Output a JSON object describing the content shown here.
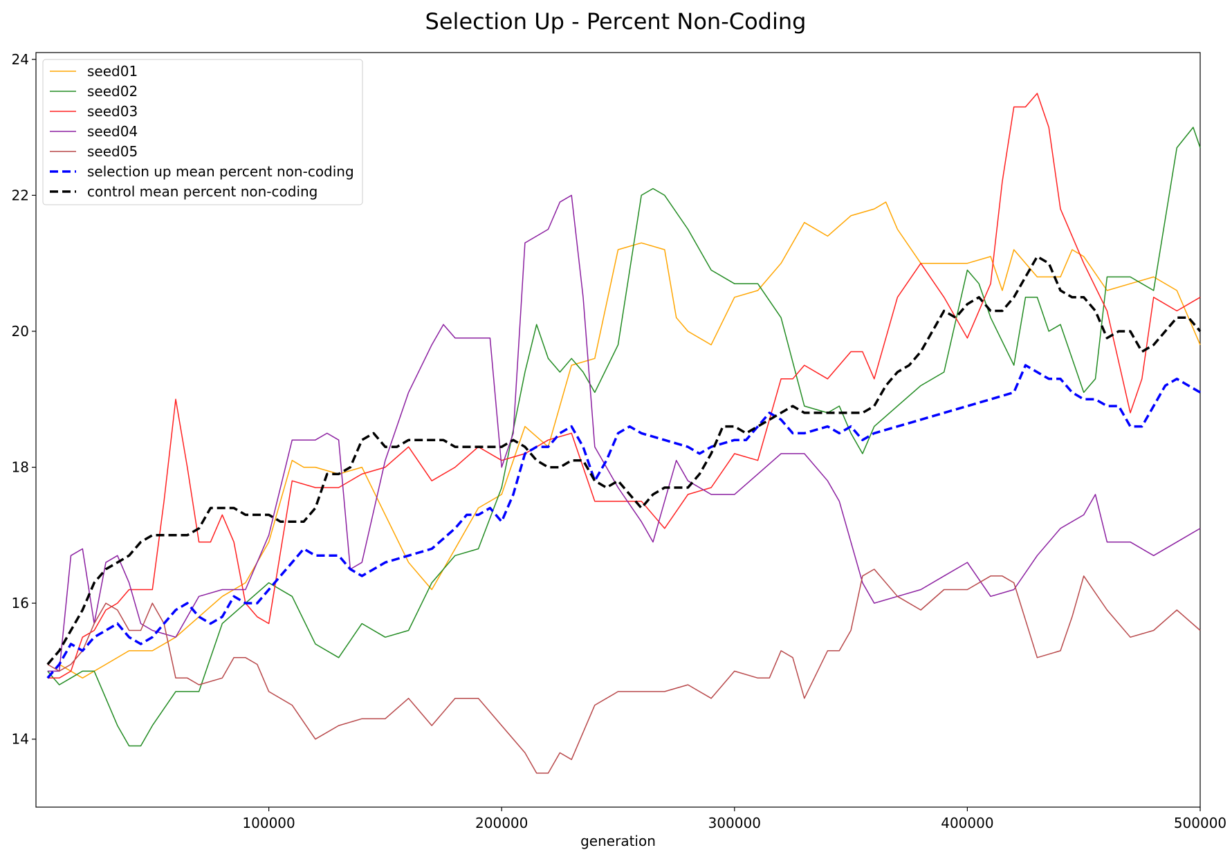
{
  "chart_data": {
    "type": "line",
    "title": "Selection Up - Percent Non-Coding",
    "xlabel": "generation",
    "ylabel": "",
    "xlim": [
      0,
      500000
    ],
    "ylim": [
      13,
      24.1
    ],
    "xticks": [
      100000,
      200000,
      300000,
      400000,
      500000
    ],
    "xtick_labels": [
      "100000",
      "200000",
      "300000",
      "400000",
      "500000"
    ],
    "yticks": [
      14,
      16,
      18,
      20,
      22,
      24
    ],
    "ytick_labels": [
      "14",
      "16",
      "18",
      "20",
      "22",
      "24"
    ],
    "grid": false,
    "legend_position": "top-left",
    "series": [
      {
        "name": "seed01",
        "color": "#FFA500",
        "style": "solid",
        "x": [
          10000,
          20000,
          30000,
          40000,
          50000,
          60000,
          70000,
          80000,
          90000,
          100000,
          110000,
          115000,
          120000,
          130000,
          140000,
          150000,
          160000,
          170000,
          180000,
          190000,
          200000,
          210000,
          220000,
          230000,
          240000,
          250000,
          260000,
          270000,
          275000,
          280000,
          290000,
          300000,
          310000,
          320000,
          330000,
          340000,
          350000,
          360000,
          365000,
          370000,
          380000,
          390000,
          400000,
          410000,
          415000,
          420000,
          430000,
          440000,
          445000,
          450000,
          460000,
          470000,
          480000,
          490000,
          500000
        ],
        "y": [
          15.1,
          14.9,
          15.1,
          15.3,
          15.3,
          15.5,
          15.8,
          16.1,
          16.3,
          16.9,
          18.1,
          18.0,
          18.0,
          17.9,
          18.0,
          17.3,
          16.6,
          16.2,
          16.8,
          17.4,
          17.6,
          18.6,
          18.3,
          19.5,
          19.6,
          21.2,
          21.3,
          21.2,
          20.2,
          20.0,
          19.8,
          20.5,
          20.6,
          21.0,
          21.6,
          21.4,
          21.7,
          21.8,
          21.9,
          21.5,
          21.0,
          21.0,
          21.0,
          21.1,
          20.6,
          21.2,
          20.8,
          20.8,
          21.2,
          21.1,
          20.6,
          20.7,
          20.8,
          20.6,
          19.8
        ]
      },
      {
        "name": "seed02",
        "color": "#228B22",
        "style": "solid",
        "x": [
          5000,
          10000,
          15000,
          20000,
          25000,
          30000,
          35000,
          40000,
          45000,
          50000,
          60000,
          70000,
          80000,
          90000,
          100000,
          110000,
          120000,
          130000,
          140000,
          150000,
          160000,
          170000,
          180000,
          190000,
          200000,
          210000,
          215000,
          220000,
          225000,
          230000,
          235000,
          240000,
          250000,
          260000,
          265000,
          270000,
          280000,
          290000,
          300000,
          310000,
          320000,
          330000,
          340000,
          345000,
          350000,
          355000,
          360000,
          370000,
          380000,
          390000,
          400000,
          405000,
          410000,
          420000,
          425000,
          430000,
          435000,
          440000,
          450000,
          455000,
          460000,
          470000,
          480000,
          490000,
          497000,
          500000
        ],
        "y": [
          15.0,
          14.8,
          14.9,
          15.0,
          15.0,
          14.6,
          14.2,
          13.9,
          13.9,
          14.2,
          14.7,
          14.7,
          15.7,
          16.0,
          16.3,
          16.1,
          15.4,
          15.2,
          15.7,
          15.5,
          15.6,
          16.3,
          16.7,
          16.8,
          17.7,
          19.4,
          20.1,
          19.6,
          19.4,
          19.6,
          19.4,
          19.1,
          19.8,
          22.0,
          22.1,
          22.0,
          21.5,
          20.9,
          20.7,
          20.7,
          20.2,
          18.9,
          18.8,
          18.9,
          18.5,
          18.2,
          18.6,
          18.9,
          19.2,
          19.4,
          20.9,
          20.7,
          20.2,
          19.5,
          20.5,
          20.5,
          20.0,
          20.1,
          19.1,
          19.3,
          20.8,
          20.8,
          20.6,
          22.7,
          23.0,
          22.7
        ]
      },
      {
        "name": "seed03",
        "color": "#FF2020",
        "style": "solid",
        "x": [
          5000,
          10000,
          15000,
          20000,
          25000,
          30000,
          35000,
          40000,
          50000,
          55000,
          60000,
          65000,
          70000,
          75000,
          80000,
          85000,
          90000,
          95000,
          100000,
          110000,
          120000,
          130000,
          140000,
          150000,
          160000,
          170000,
          180000,
          190000,
          200000,
          210000,
          220000,
          230000,
          240000,
          250000,
          260000,
          270000,
          280000,
          290000,
          300000,
          310000,
          320000,
          325000,
          330000,
          340000,
          350000,
          355000,
          360000,
          370000,
          380000,
          390000,
          400000,
          410000,
          415000,
          420000,
          425000,
          430000,
          435000,
          440000,
          450000,
          460000,
          470000,
          475000,
          480000,
          490000,
          500000
        ],
        "y": [
          14.9,
          14.9,
          15.0,
          15.5,
          15.6,
          15.9,
          16.0,
          16.2,
          16.2,
          17.5,
          19.0,
          18.0,
          16.9,
          16.9,
          17.3,
          16.9,
          16.0,
          15.8,
          15.7,
          17.8,
          17.7,
          17.7,
          17.9,
          18.0,
          18.3,
          17.8,
          18.0,
          18.3,
          18.1,
          18.2,
          18.4,
          18.5,
          17.5,
          17.5,
          17.5,
          17.1,
          17.6,
          17.7,
          18.2,
          18.1,
          19.3,
          19.3,
          19.5,
          19.3,
          19.7,
          19.7,
          19.3,
          20.5,
          21.0,
          20.5,
          19.9,
          20.7,
          22.2,
          23.3,
          23.3,
          23.5,
          23.0,
          21.8,
          21.0,
          20.3,
          18.8,
          19.3,
          20.5,
          20.3,
          20.5
        ]
      },
      {
        "name": "seed04",
        "color": "#8B1FA0",
        "style": "solid",
        "x": [
          5000,
          10000,
          15000,
          20000,
          25000,
          30000,
          35000,
          40000,
          45000,
          50000,
          60000,
          70000,
          80000,
          90000,
          100000,
          110000,
          120000,
          125000,
          130000,
          135000,
          140000,
          150000,
          160000,
          170000,
          175000,
          180000,
          185000,
          190000,
          195000,
          200000,
          205000,
          210000,
          215000,
          220000,
          225000,
          230000,
          235000,
          240000,
          250000,
          260000,
          265000,
          270000,
          275000,
          280000,
          290000,
          300000,
          310000,
          320000,
          330000,
          340000,
          345000,
          350000,
          355000,
          360000,
          370000,
          380000,
          390000,
          400000,
          410000,
          420000,
          430000,
          440000,
          450000,
          455000,
          460000,
          470000,
          480000,
          490000,
          500000
        ],
        "y": [
          15.0,
          15.0,
          16.7,
          16.8,
          15.7,
          16.6,
          16.7,
          16.3,
          15.7,
          15.6,
          15.5,
          16.1,
          16.2,
          16.2,
          17.0,
          18.4,
          18.4,
          18.5,
          18.4,
          16.5,
          16.6,
          18.1,
          19.1,
          19.8,
          20.1,
          19.9,
          19.9,
          19.9,
          19.9,
          18.0,
          18.5,
          21.3,
          21.4,
          21.5,
          21.9,
          22.0,
          20.5,
          18.3,
          17.7,
          17.2,
          16.9,
          17.5,
          18.1,
          17.8,
          17.6,
          17.6,
          17.9,
          18.2,
          18.2,
          17.8,
          17.5,
          16.9,
          16.3,
          16.0,
          16.1,
          16.2,
          16.4,
          16.6,
          16.1,
          16.2,
          16.7,
          17.1,
          17.3,
          17.6,
          16.9,
          16.9,
          16.7,
          16.9,
          17.1
        ]
      },
      {
        "name": "seed05",
        "color": "#B8484A",
        "style": "solid",
        "x": [
          5000,
          10000,
          15000,
          20000,
          25000,
          30000,
          35000,
          40000,
          45000,
          50000,
          55000,
          60000,
          65000,
          70000,
          80000,
          85000,
          90000,
          95000,
          100000,
          110000,
          120000,
          130000,
          140000,
          150000,
          160000,
          170000,
          180000,
          190000,
          200000,
          210000,
          215000,
          220000,
          225000,
          230000,
          240000,
          250000,
          260000,
          270000,
          280000,
          290000,
          300000,
          310000,
          315000,
          320000,
          325000,
          330000,
          340000,
          345000,
          350000,
          355000,
          360000,
          370000,
          380000,
          390000,
          400000,
          410000,
          415000,
          420000,
          430000,
          440000,
          445000,
          450000,
          460000,
          470000,
          480000,
          490000,
          500000
        ],
        "y": [
          15.1,
          15.0,
          15.1,
          15.3,
          15.7,
          16.0,
          15.9,
          15.6,
          15.6,
          16.0,
          15.7,
          14.9,
          14.9,
          14.8,
          14.9,
          15.2,
          15.2,
          15.1,
          14.7,
          14.5,
          14.0,
          14.2,
          14.3,
          14.3,
          14.6,
          14.2,
          14.6,
          14.6,
          14.2,
          13.8,
          13.5,
          13.5,
          13.8,
          13.7,
          14.5,
          14.7,
          14.7,
          14.7,
          14.8,
          14.6,
          15.0,
          14.9,
          14.9,
          15.3,
          15.2,
          14.6,
          15.3,
          15.3,
          15.6,
          16.4,
          16.5,
          16.1,
          15.9,
          16.2,
          16.2,
          16.4,
          16.4,
          16.3,
          15.2,
          15.3,
          15.8,
          16.4,
          15.9,
          15.5,
          15.6,
          15.9,
          15.6
        ]
      },
      {
        "name": "selection up mean percent non-coding",
        "color": "#0000FF",
        "style": "dashed",
        "x": [
          5000,
          10000,
          15000,
          20000,
          25000,
          30000,
          35000,
          40000,
          45000,
          50000,
          55000,
          60000,
          65000,
          70000,
          75000,
          80000,
          85000,
          90000,
          95000,
          100000,
          105000,
          110000,
          115000,
          120000,
          130000,
          135000,
          140000,
          145000,
          150000,
          160000,
          170000,
          180000,
          185000,
          190000,
          195000,
          200000,
          205000,
          210000,
          215000,
          220000,
          225000,
          230000,
          235000,
          240000,
          245000,
          250000,
          255000,
          260000,
          270000,
          280000,
          285000,
          290000,
          300000,
          305000,
          310000,
          315000,
          320000,
          325000,
          330000,
          340000,
          345000,
          350000,
          355000,
          360000,
          370000,
          380000,
          390000,
          400000,
          410000,
          420000,
          425000,
          430000,
          435000,
          440000,
          445000,
          450000,
          455000,
          460000,
          465000,
          470000,
          475000,
          480000,
          485000,
          490000,
          495000,
          500000
        ],
        "y": [
          14.9,
          15.1,
          15.4,
          15.3,
          15.5,
          15.6,
          15.7,
          15.5,
          15.4,
          15.5,
          15.7,
          15.9,
          16.0,
          15.8,
          15.7,
          15.8,
          16.1,
          16.0,
          16.0,
          16.2,
          16.4,
          16.6,
          16.8,
          16.7,
          16.7,
          16.5,
          16.4,
          16.5,
          16.6,
          16.7,
          16.8,
          17.1,
          17.3,
          17.3,
          17.4,
          17.2,
          17.6,
          18.2,
          18.3,
          18.3,
          18.5,
          18.6,
          18.3,
          17.8,
          18.1,
          18.5,
          18.6,
          18.5,
          18.4,
          18.3,
          18.2,
          18.3,
          18.4,
          18.4,
          18.6,
          18.8,
          18.7,
          18.5,
          18.5,
          18.6,
          18.5,
          18.6,
          18.4,
          18.5,
          18.6,
          18.7,
          18.8,
          18.9,
          19.0,
          19.1,
          19.5,
          19.4,
          19.3,
          19.3,
          19.1,
          19.0,
          19.0,
          18.9,
          18.9,
          18.6,
          18.6,
          18.9,
          19.2,
          19.3,
          19.2,
          19.1
        ]
      },
      {
        "name": "control mean percent non-coding",
        "color": "#000000",
        "style": "dashed",
        "x": [
          5000,
          10000,
          15000,
          20000,
          25000,
          30000,
          35000,
          40000,
          45000,
          50000,
          55000,
          60000,
          65000,
          70000,
          75000,
          80000,
          85000,
          90000,
          95000,
          100000,
          105000,
          110000,
          115000,
          120000,
          125000,
          130000,
          135000,
          140000,
          145000,
          150000,
          155000,
          160000,
          165000,
          170000,
          175000,
          180000,
          185000,
          190000,
          195000,
          200000,
          205000,
          210000,
          215000,
          220000,
          225000,
          230000,
          235000,
          240000,
          245000,
          250000,
          255000,
          260000,
          265000,
          270000,
          275000,
          280000,
          285000,
          290000,
          295000,
          300000,
          305000,
          310000,
          315000,
          320000,
          325000,
          330000,
          335000,
          340000,
          345000,
          350000,
          355000,
          360000,
          365000,
          370000,
          375000,
          380000,
          385000,
          390000,
          395000,
          400000,
          405000,
          410000,
          415000,
          420000,
          425000,
          430000,
          435000,
          440000,
          445000,
          450000,
          455000,
          460000,
          465000,
          470000,
          475000,
          480000,
          485000,
          490000,
          495000,
          500000
        ],
        "y": [
          15.1,
          15.3,
          15.6,
          15.9,
          16.3,
          16.5,
          16.6,
          16.7,
          16.9,
          17.0,
          17.0,
          17.0,
          17.0,
          17.1,
          17.4,
          17.4,
          17.4,
          17.3,
          17.3,
          17.3,
          17.2,
          17.2,
          17.2,
          17.4,
          17.9,
          17.9,
          18.0,
          18.4,
          18.5,
          18.3,
          18.3,
          18.4,
          18.4,
          18.4,
          18.4,
          18.3,
          18.3,
          18.3,
          18.3,
          18.3,
          18.4,
          18.3,
          18.1,
          18.0,
          18.0,
          18.1,
          18.1,
          17.8,
          17.7,
          17.8,
          17.6,
          17.4,
          17.6,
          17.7,
          17.7,
          17.7,
          17.9,
          18.2,
          18.6,
          18.6,
          18.5,
          18.6,
          18.7,
          18.8,
          18.9,
          18.8,
          18.8,
          18.8,
          18.8,
          18.8,
          18.8,
          18.9,
          19.2,
          19.4,
          19.5,
          19.7,
          20.0,
          20.3,
          20.2,
          20.4,
          20.5,
          20.3,
          20.3,
          20.5,
          20.8,
          21.1,
          21.0,
          20.6,
          20.5,
          20.5,
          20.3,
          19.9,
          20.0,
          20.0,
          19.7,
          19.8,
          20.0,
          20.2,
          20.2,
          20.0
        ]
      }
    ]
  }
}
